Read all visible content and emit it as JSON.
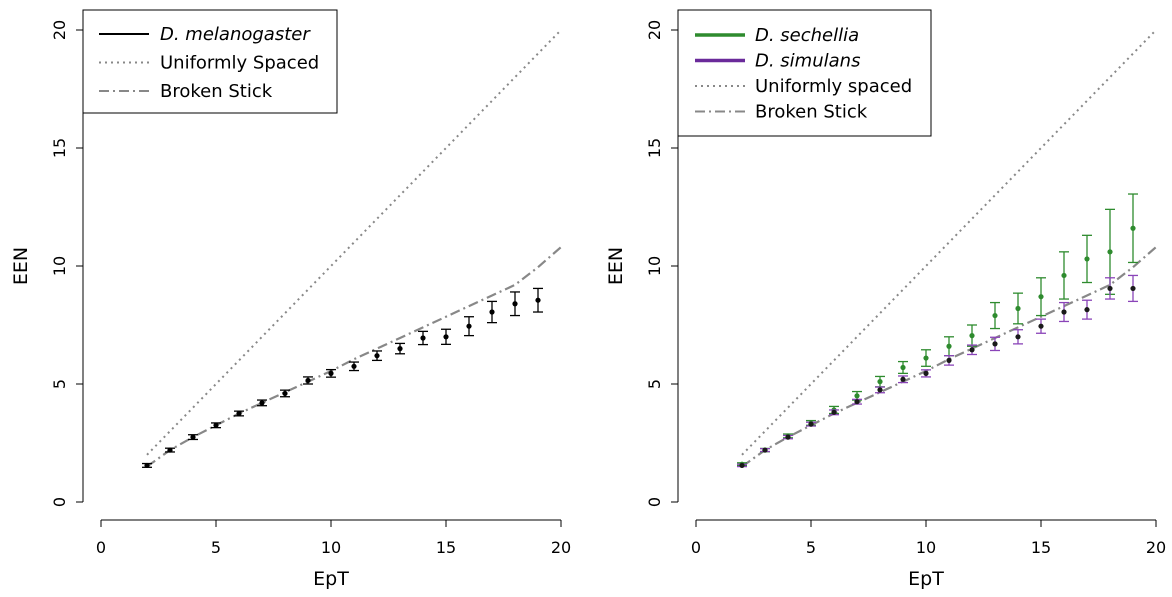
{
  "chart_data": [
    {
      "type": "scatter",
      "xlabel": "EpT",
      "ylabel": "EEN",
      "xlim": [
        0,
        20
      ],
      "ylim": [
        0,
        20
      ],
      "xticks": [
        "0",
        "5",
        "10",
        "15",
        "20"
      ],
      "yticks": [
        "0",
        "5",
        "10",
        "15",
        "20"
      ],
      "legend_position": "top-left",
      "legend": [
        {
          "label": "D. melanogaster",
          "style": "solid",
          "italic": true,
          "color": "#000000"
        },
        {
          "label": "Uniformly Spaced",
          "style": "dotted",
          "italic": false,
          "color": "#888888"
        },
        {
          "label": "Broken Stick",
          "style": "dashdot",
          "italic": false,
          "color": "#888888"
        }
      ],
      "lines": [
        {
          "name": "Uniformly Spaced",
          "style": "dotted",
          "color": "#888888",
          "x": [
            2,
            20
          ],
          "y": [
            2,
            20
          ]
        },
        {
          "name": "Broken Stick",
          "style": "dashdot",
          "color": "#888888",
          "x": [
            2,
            3,
            4,
            5,
            6,
            7,
            8,
            9,
            10,
            11,
            12,
            13,
            14,
            15,
            16,
            17,
            18,
            19,
            20
          ],
          "y": [
            1.5,
            2.2,
            2.75,
            3.25,
            3.75,
            4.2,
            4.65,
            5.1,
            5.55,
            6.05,
            6.5,
            6.95,
            7.4,
            7.85,
            8.3,
            8.75,
            9.2,
            9.95,
            10.8
          ]
        }
      ],
      "series": [
        {
          "name": "D. melanogaster",
          "color": "#000000",
          "errcolor": "#000000",
          "x": [
            2,
            3,
            4,
            5,
            6,
            7,
            8,
            9,
            10,
            11,
            12,
            13,
            14,
            15,
            16,
            17,
            18,
            19
          ],
          "y": [
            1.55,
            2.2,
            2.75,
            3.25,
            3.75,
            4.2,
            4.6,
            5.15,
            5.45,
            5.75,
            6.2,
            6.5,
            6.95,
            7.0,
            7.45,
            8.05,
            8.4,
            8.55
          ],
          "err": [
            0.08,
            0.08,
            0.1,
            0.1,
            0.1,
            0.12,
            0.14,
            0.15,
            0.16,
            0.18,
            0.2,
            0.22,
            0.28,
            0.32,
            0.4,
            0.45,
            0.5,
            0.5
          ]
        }
      ]
    },
    {
      "type": "scatter",
      "xlabel": "EpT",
      "ylabel": "EEN",
      "xlim": [
        0,
        20
      ],
      "ylim": [
        0,
        20
      ],
      "xticks": [
        "0",
        "5",
        "10",
        "15",
        "20"
      ],
      "yticks": [
        "0",
        "5",
        "10",
        "15",
        "20"
      ],
      "legend_position": "top-left",
      "legend": [
        {
          "label": "D. sechellia",
          "style": "solid-thick",
          "italic": true,
          "color": "#2e8b2e"
        },
        {
          "label": "D. simulans",
          "style": "solid-thick",
          "italic": true,
          "color": "#6a2a9a"
        },
        {
          "label": "Uniformly spaced",
          "style": "dotted",
          "italic": false,
          "color": "#888888"
        },
        {
          "label": "Broken Stick",
          "style": "dashdot",
          "italic": false,
          "color": "#888888"
        }
      ],
      "lines": [
        {
          "name": "Uniformly spaced",
          "style": "dotted",
          "color": "#888888",
          "x": [
            2,
            20
          ],
          "y": [
            2,
            20
          ]
        },
        {
          "name": "Broken Stick",
          "style": "dashdot",
          "color": "#888888",
          "x": [
            2,
            3,
            4,
            5,
            6,
            7,
            8,
            9,
            10,
            11,
            12,
            13,
            14,
            15,
            16,
            17,
            18,
            19,
            20
          ],
          "y": [
            1.5,
            2.2,
            2.75,
            3.25,
            3.75,
            4.2,
            4.65,
            5.1,
            5.55,
            6.05,
            6.5,
            6.95,
            7.4,
            7.85,
            8.3,
            8.75,
            9.2,
            9.95,
            10.8
          ]
        }
      ],
      "series": [
        {
          "name": "D. sechellia",
          "color": "#2e8b2e",
          "errcolor": "#2e8b2e",
          "x": [
            2,
            3,
            4,
            5,
            6,
            7,
            8,
            9,
            10,
            11,
            12,
            13,
            14,
            15,
            16,
            17,
            18,
            19
          ],
          "y": [
            1.6,
            2.2,
            2.8,
            3.35,
            3.9,
            4.5,
            5.1,
            5.7,
            6.1,
            6.6,
            7.05,
            7.9,
            8.2,
            8.7,
            9.6,
            10.3,
            10.6,
            11.6
          ],
          "err": [
            0.06,
            0.07,
            0.08,
            0.1,
            0.15,
            0.18,
            0.22,
            0.25,
            0.35,
            0.4,
            0.45,
            0.55,
            0.65,
            0.8,
            1.0,
            1.0,
            1.8,
            1.45
          ]
        },
        {
          "name": "D. simulans",
          "color": "#1a1a1a",
          "errcolor": "#8a44b8",
          "x": [
            2,
            3,
            4,
            5,
            6,
            7,
            8,
            9,
            10,
            11,
            12,
            13,
            14,
            15,
            16,
            17,
            18,
            19
          ],
          "y": [
            1.55,
            2.2,
            2.75,
            3.3,
            3.8,
            4.25,
            4.75,
            5.2,
            5.45,
            6.0,
            6.45,
            6.7,
            7.0,
            7.45,
            8.05,
            8.15,
            9.05,
            9.05
          ],
          "err": [
            0.05,
            0.06,
            0.07,
            0.08,
            0.1,
            0.1,
            0.12,
            0.14,
            0.15,
            0.2,
            0.2,
            0.28,
            0.3,
            0.3,
            0.4,
            0.4,
            0.45,
            0.55
          ]
        }
      ]
    }
  ]
}
